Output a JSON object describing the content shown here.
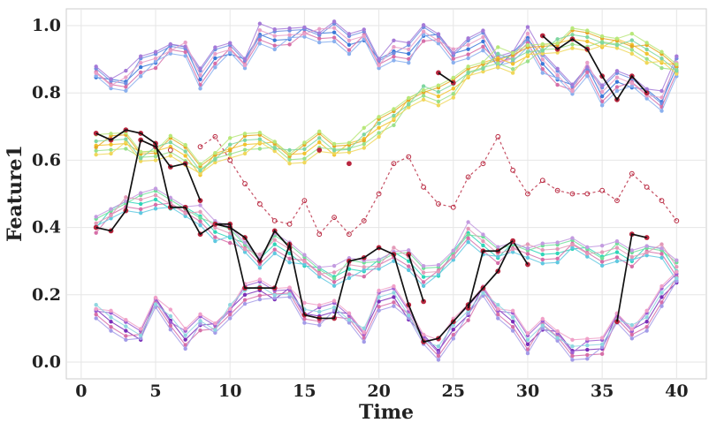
{
  "chart_data": {
    "type": "line",
    "xlabel": "Time",
    "ylabel": "Feature1",
    "xlim": [
      -1,
      42
    ],
    "ylim": [
      -0.05,
      1.05
    ],
    "xticks": [
      0,
      5,
      10,
      15,
      20,
      25,
      30,
      35,
      40
    ],
    "yticks": [
      0.0,
      0.2,
      0.4,
      0.6,
      0.8,
      1.0
    ],
    "xtick_labels": [
      "0",
      "5",
      "10",
      "15",
      "20",
      "25",
      "30",
      "35",
      "40"
    ],
    "ytick_labels": [
      "0.0",
      "0.2",
      "0.4",
      "0.6",
      "0.8",
      "1.0"
    ],
    "grid": true,
    "legend": "none",
    "x": [
      1,
      2,
      3,
      4,
      5,
      6,
      7,
      8,
      9,
      10,
      11,
      12,
      13,
      14,
      15,
      16,
      17,
      18,
      19,
      20,
      21,
      22,
      23,
      24,
      25,
      26,
      27,
      28,
      29,
      30,
      31,
      32,
      33,
      34,
      35,
      36,
      37,
      38,
      39,
      40
    ],
    "bundles": [
      {
        "group": "high-band",
        "colors": [
          "#3a78d8",
          "#6f8ee0",
          "#d66fa8",
          "#a57ad8",
          "#8ab0ee",
          "#e8a0c8"
        ],
        "base": [
          0.86,
          0.83,
          0.83,
          0.88,
          0.9,
          0.93,
          0.93,
          0.84,
          0.91,
          0.93,
          0.89,
          0.97,
          0.96,
          0.97,
          0.98,
          0.97,
          0.98,
          0.95,
          0.97,
          0.89,
          0.92,
          0.92,
          0.98,
          0.96,
          0.91,
          0.93,
          0.96,
          0.89,
          0.91,
          0.96,
          0.89,
          0.85,
          0.81,
          0.87,
          0.79,
          0.84,
          0.83,
          0.8,
          0.77,
          0.88
        ]
      },
      {
        "group": "upper-mid-band",
        "colors": [
          "#f2c22e",
          "#e5a825",
          "#9be08a",
          "#b8e87a",
          "#f0d75a",
          "#7fd6a0"
        ],
        "base": [
          0.64,
          0.65,
          0.66,
          0.61,
          0.62,
          0.64,
          0.62,
          0.57,
          0.61,
          0.63,
          0.65,
          0.66,
          0.64,
          0.61,
          0.62,
          0.66,
          0.63,
          0.64,
          0.66,
          0.7,
          0.73,
          0.77,
          0.8,
          0.79,
          0.82,
          0.86,
          0.88,
          0.9,
          0.89,
          0.92,
          0.93,
          0.94,
          0.96,
          0.96,
          0.95,
          0.95,
          0.94,
          0.92,
          0.9,
          0.87
        ]
      },
      {
        "group": "lower-mid-band",
        "colors": [
          "#2ed6b8",
          "#6fdf9a",
          "#d66fa8",
          "#c39be0",
          "#5fc8e0",
          "#e39ab8"
        ],
        "base": [
          0.41,
          0.44,
          0.47,
          0.47,
          0.49,
          0.47,
          0.45,
          0.43,
          0.39,
          0.38,
          0.34,
          0.3,
          0.35,
          0.33,
          0.3,
          0.27,
          0.25,
          0.28,
          0.28,
          0.29,
          0.32,
          0.3,
          0.26,
          0.27,
          0.32,
          0.38,
          0.35,
          0.32,
          0.34,
          0.33,
          0.32,
          0.33,
          0.35,
          0.33,
          0.31,
          0.33,
          0.31,
          0.33,
          0.33,
          0.27
        ]
      },
      {
        "group": "low-band",
        "colors": [
          "#7a2eb8",
          "#9d5fd2",
          "#d66fa8",
          "#f0a0c8",
          "#a39be8",
          "#8fd6e0"
        ],
        "base": [
          0.15,
          0.12,
          0.1,
          0.08,
          0.18,
          0.12,
          0.07,
          0.12,
          0.1,
          0.15,
          0.2,
          0.22,
          0.2,
          0.21,
          0.14,
          0.14,
          0.16,
          0.13,
          0.08,
          0.18,
          0.2,
          0.14,
          0.07,
          0.03,
          0.1,
          0.15,
          0.21,
          0.15,
          0.12,
          0.06,
          0.11,
          0.08,
          0.03,
          0.04,
          0.05,
          0.13,
          0.09,
          0.12,
          0.2,
          0.25
        ]
      }
    ],
    "series": [
      {
        "color": "#111111",
        "style": "solid",
        "values": [
          0.4,
          0.39,
          0.45,
          0.66,
          0.64,
          0.58,
          0.59,
          0.48,
          null,
          null,
          null,
          null,
          null,
          null,
          null,
          null,
          null,
          null,
          null,
          null,
          null,
          null,
          null,
          null,
          null,
          null,
          null,
          null,
          null,
          null,
          0.97,
          0.93,
          0.96,
          0.93,
          0.85,
          0.78,
          0.85,
          0.8,
          null,
          null
        ]
      },
      {
        "color": "#111111",
        "style": "solid",
        "values": [
          0.68,
          0.66,
          0.69,
          0.68,
          0.65,
          0.46,
          0.46,
          0.38,
          0.41,
          0.4,
          0.37,
          0.3,
          0.39,
          0.34,
          null,
          0.63,
          null,
          0.59,
          null,
          null,
          null,
          null,
          null,
          0.86,
          0.83,
          null,
          null,
          null,
          null,
          null,
          null,
          null,
          null,
          null,
          null,
          null,
          null,
          null,
          null,
          null
        ]
      },
      {
        "color": "#111111",
        "style": "solid",
        "values": [
          null,
          null,
          null,
          null,
          null,
          null,
          null,
          null,
          0.41,
          0.41,
          0.22,
          0.22,
          0.22,
          0.35,
          0.14,
          0.13,
          0.13,
          0.3,
          0.31,
          0.34,
          0.32,
          0.17,
          0.06,
          0.07,
          0.12,
          0.17,
          0.22,
          0.27,
          0.36,
          0.29,
          null,
          null,
          null,
          null,
          null,
          null,
          null,
          null,
          null,
          null
        ]
      },
      {
        "color": "#111111",
        "style": "solid",
        "values": [
          null,
          null,
          null,
          null,
          null,
          null,
          null,
          null,
          null,
          null,
          null,
          null,
          null,
          null,
          null,
          null,
          null,
          null,
          null,
          null,
          null,
          0.32,
          0.18,
          null,
          null,
          0.16,
          0.33,
          0.33,
          0.36,
          null,
          null,
          null,
          null,
          null,
          null,
          0.12,
          0.38,
          0.37,
          null,
          null
        ]
      },
      {
        "color": "#b8263e",
        "style": "dashed",
        "values": [
          null,
          null,
          null,
          null,
          null,
          0.63,
          null,
          0.64,
          0.67,
          0.6,
          0.53,
          0.47,
          0.42,
          0.41,
          0.48,
          0.38,
          0.43,
          0.38,
          0.42,
          0.5,
          0.59,
          0.61,
          0.52,
          0.47,
          0.46,
          0.55,
          0.59,
          0.67,
          0.57,
          0.5,
          0.54,
          0.51,
          0.5,
          0.5,
          0.51,
          0.48,
          0.56,
          0.52,
          0.48,
          0.42
        ]
      }
    ]
  }
}
